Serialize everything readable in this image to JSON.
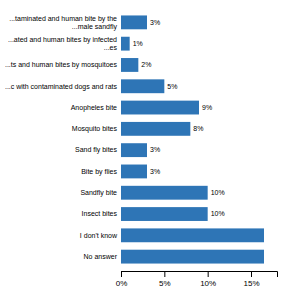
{
  "chart_data": {
    "type": "bar",
    "orientation": "horizontal",
    "categories": [
      "No answer",
      "I don't know",
      "Insect bites",
      "Sandfly bite",
      "Bite by flies",
      "Sand fly bites",
      "Mosquito bites",
      "Anopheles bite",
      "...c with contaminated dogs and rats",
      "...ts and human bites by mosquitoes",
      "...ated and human bites by infected\n...es",
      "...taminated and human bite by the\n...male sandfly"
    ],
    "values": [
      16.5,
      16.5,
      10,
      10,
      3,
      3,
      8,
      9,
      5,
      2,
      1,
      3
    ],
    "value_labels": [
      null,
      null,
      "10%",
      "10%",
      "3%",
      "3%",
      "8%",
      "9%",
      "5%",
      "2%",
      "1%",
      "3%"
    ],
    "data_labels": true,
    "color": "#2E75B6",
    "xlim": [
      0,
      18
    ],
    "xticks": [
      {
        "value": 0,
        "label": "0%"
      },
      {
        "value": 5,
        "label": "5%"
      },
      {
        "value": 10,
        "label": "10%"
      },
      {
        "value": 15,
        "label": "15%"
      }
    ],
    "grid": false
  }
}
